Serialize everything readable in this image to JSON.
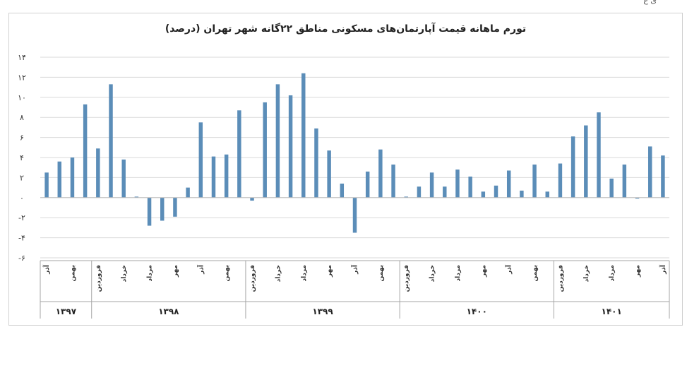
{
  "corner_text": "ی ع",
  "chart_data": {
    "type": "bar",
    "title": "تورم ماهانه قیمت آپارتمان‌های مسکونی مناطق ۲۲گانه شهر تهران (درصد)",
    "xlabel": "",
    "ylabel": "",
    "ylim": [
      -6,
      14
    ],
    "yticks": [
      {
        "value": 14,
        "label": "۱۴"
      },
      {
        "value": 12,
        "label": "۱۲"
      },
      {
        "value": 10,
        "label": "۱۰"
      },
      {
        "value": 8,
        "label": "۸"
      },
      {
        "value": 6,
        "label": "۶"
      },
      {
        "value": 4,
        "label": "۴"
      },
      {
        "value": 2,
        "label": "۲"
      },
      {
        "value": 0,
        "label": "۰"
      },
      {
        "value": -2,
        "label": "-۲"
      },
      {
        "value": -4,
        "label": "-۴"
      },
      {
        "value": -6,
        "label": "-۶"
      }
    ],
    "grid": true,
    "bar_color": "#5b8db8",
    "values": [
      2.5,
      3.6,
      4.0,
      9.3,
      4.9,
      11.3,
      3.8,
      0.1,
      -2.8,
      -2.3,
      -1.9,
      1.0,
      7.5,
      4.1,
      4.3,
      8.7,
      -0.3,
      9.5,
      11.3,
      10.2,
      12.4,
      6.9,
      4.7,
      1.4,
      -3.5,
      2.6,
      4.8,
      3.3,
      0.1,
      1.1,
      2.5,
      1.1,
      2.8,
      2.1,
      0.6,
      1.2,
      2.7,
      0.7,
      3.3,
      0.6,
      3.4,
      6.1,
      7.2,
      8.5,
      1.9,
      3.3,
      -0.1,
      5.1,
      4.2
    ],
    "month_labels": [
      {
        "index": 0,
        "text": "آذر"
      },
      {
        "index": 2,
        "text": "بهمن"
      },
      {
        "index": 4,
        "text": "فروردین"
      },
      {
        "index": 6,
        "text": "خرداد"
      },
      {
        "index": 8,
        "text": "مرداد"
      },
      {
        "index": 10,
        "text": "مهر"
      },
      {
        "index": 12,
        "text": "آذر"
      },
      {
        "index": 14,
        "text": "بهمن"
      },
      {
        "index": 16,
        "text": "فروردین"
      },
      {
        "index": 18,
        "text": "خرداد"
      },
      {
        "index": 20,
        "text": "مرداد"
      },
      {
        "index": 22,
        "text": "مهر"
      },
      {
        "index": 24,
        "text": "آذر"
      },
      {
        "index": 26,
        "text": "بهمن"
      },
      {
        "index": 28,
        "text": "فروردین"
      },
      {
        "index": 30,
        "text": "خرداد"
      },
      {
        "index": 32,
        "text": "مرداد"
      },
      {
        "index": 34,
        "text": "مهر"
      },
      {
        "index": 36,
        "text": "آذر"
      },
      {
        "index": 38,
        "text": "بهمن"
      },
      {
        "index": 40,
        "text": "فروردین"
      },
      {
        "index": 42,
        "text": "خرداد"
      },
      {
        "index": 44,
        "text": "مرداد"
      },
      {
        "index": 46,
        "text": "مهر"
      },
      {
        "index": 48,
        "text": "آذر"
      }
    ],
    "years": [
      {
        "label": "۱۳۹۷",
        "start": 0,
        "end": 3
      },
      {
        "label": "۱۳۹۸",
        "start": 4,
        "end": 15
      },
      {
        "label": "۱۳۹۹",
        "start": 16,
        "end": 27
      },
      {
        "label": "۱۴۰۰",
        "start": 28,
        "end": 39
      },
      {
        "label": "۱۴۰۱",
        "start": 40,
        "end": 48
      }
    ]
  }
}
